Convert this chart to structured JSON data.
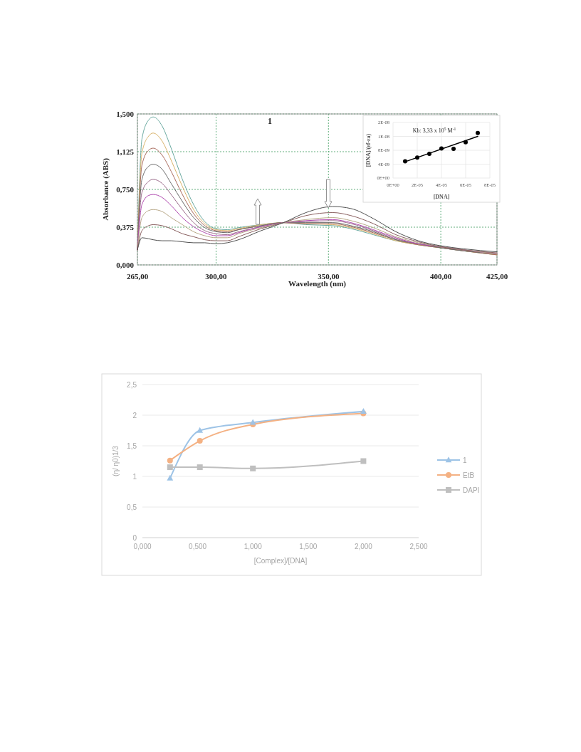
{
  "chart_data": [
    {
      "type": "line",
      "title": "1",
      "xlabel": "Wavelength (nm)",
      "ylabel": "Absorbance (ABS)",
      "legend": false,
      "grid": true,
      "line_style": "solid",
      "marker": "none",
      "x": [
        265,
        267,
        270,
        272,
        276,
        280,
        285,
        290,
        295,
        300,
        305,
        310,
        320,
        330,
        340,
        352,
        360,
        370,
        380,
        390,
        400,
        410,
        425
      ],
      "xlim": [
        265,
        425
      ],
      "xticks": [
        {
          "value": 265,
          "label": "265,00"
        },
        {
          "value": 300,
          "label": "300,00"
        },
        {
          "value": 350,
          "label": "350,00"
        },
        {
          "value": 400,
          "label": "400,00"
        },
        {
          "value": 425,
          "label": "425,00"
        }
      ],
      "ylim": [
        0,
        1.5
      ],
      "yticks": [
        {
          "value": 0,
          "label": "0,000"
        },
        {
          "value": 0.375,
          "label": "0,375"
        },
        {
          "value": 0.75,
          "label": "0,750"
        },
        {
          "value": 1.125,
          "label": "1,125"
        },
        {
          "value": 1.5,
          "label": "1,500"
        }
      ],
      "series": [
        {
          "color": "#6aa9a0",
          "values": [
            0.15,
            1.25,
            1.44,
            1.47,
            1.38,
            1.16,
            0.85,
            0.6,
            0.43,
            0.36,
            0.35,
            0.37,
            0.4,
            0.42,
            0.4,
            0.39,
            0.36,
            0.3,
            0.24,
            0.2,
            0.17,
            0.14,
            0.1
          ]
        },
        {
          "color": "#d9b36a",
          "values": [
            0.15,
            1.11,
            1.28,
            1.31,
            1.23,
            1.04,
            0.78,
            0.55,
            0.41,
            0.35,
            0.34,
            0.36,
            0.4,
            0.42,
            0.41,
            0.4,
            0.37,
            0.31,
            0.24,
            0.2,
            0.17,
            0.14,
            0.1
          ]
        },
        {
          "color": "#a86a5c",
          "values": [
            0.15,
            0.99,
            1.14,
            1.16,
            1.09,
            0.93,
            0.7,
            0.51,
            0.39,
            0.34,
            0.33,
            0.35,
            0.39,
            0.42,
            0.41,
            0.41,
            0.38,
            0.32,
            0.25,
            0.2,
            0.17,
            0.14,
            0.1
          ]
        },
        {
          "color": "#6a6a6a",
          "values": [
            0.15,
            0.85,
            0.98,
            1.0,
            0.95,
            0.81,
            0.63,
            0.47,
            0.37,
            0.33,
            0.32,
            0.35,
            0.39,
            0.42,
            0.42,
            0.42,
            0.39,
            0.33,
            0.25,
            0.21,
            0.17,
            0.14,
            0.11
          ]
        },
        {
          "color": "#9a6a8a",
          "values": [
            0.15,
            0.72,
            0.83,
            0.85,
            0.81,
            0.7,
            0.55,
            0.42,
            0.34,
            0.31,
            0.3,
            0.33,
            0.38,
            0.42,
            0.43,
            0.44,
            0.41,
            0.34,
            0.26,
            0.21,
            0.18,
            0.15,
            0.11
          ]
        },
        {
          "color": "#b04ab0",
          "values": [
            0.15,
            0.6,
            0.69,
            0.7,
            0.67,
            0.59,
            0.47,
            0.38,
            0.32,
            0.29,
            0.29,
            0.32,
            0.38,
            0.42,
            0.44,
            0.45,
            0.42,
            0.35,
            0.27,
            0.21,
            0.18,
            0.15,
            0.11
          ]
        },
        {
          "color": "#b8a888",
          "values": [
            0.15,
            0.47,
            0.54,
            0.55,
            0.53,
            0.47,
            0.4,
            0.33,
            0.29,
            0.27,
            0.27,
            0.31,
            0.37,
            0.42,
            0.45,
            0.47,
            0.44,
            0.37,
            0.28,
            0.22,
            0.18,
            0.15,
            0.11
          ]
        },
        {
          "color": "#8a6060",
          "values": [
            0.15,
            0.34,
            0.39,
            0.4,
            0.39,
            0.36,
            0.31,
            0.28,
            0.25,
            0.24,
            0.24,
            0.28,
            0.36,
            0.42,
            0.49,
            0.52,
            0.49,
            0.41,
            0.3,
            0.23,
            0.18,
            0.15,
            0.12
          ]
        },
        {
          "color": "#505050",
          "values": [
            0.15,
            0.27,
            0.26,
            0.25,
            0.24,
            0.24,
            0.23,
            0.22,
            0.22,
            0.21,
            0.22,
            0.25,
            0.34,
            0.42,
            0.52,
            0.58,
            0.56,
            0.46,
            0.33,
            0.24,
            0.19,
            0.16,
            0.13
          ]
        }
      ]
    },
    {
      "type": "scatter",
      "xlabel": "[DNA]",
      "ylabel": "[DNA]/(εf-εa)",
      "grid": true,
      "legend": false,
      "annotations": [
        "Kb: 3,33 x 10$^{5}$ M$^{-1}$"
      ],
      "xlim": [
        0,
        8e-05
      ],
      "xticks": [
        {
          "value": 0,
          "label": "0E+00"
        },
        {
          "value": 2e-05,
          "label": "2E-05"
        },
        {
          "value": 4e-05,
          "label": "4E-05"
        },
        {
          "value": 6e-05,
          "label": "6E-05"
        },
        {
          "value": 8e-05,
          "label": "8E-05"
        }
      ],
      "ylim": [
        0,
        1.6e-08
      ],
      "yticks": [
        {
          "value": 0,
          "label": "0E+00"
        },
        {
          "value": 4e-09,
          "label": "4E-09"
        },
        {
          "value": 8e-09,
          "label": "8E-09"
        },
        {
          "value": 1.2e-08,
          "label": "1E-08"
        },
        {
          "value": 1.6e-08,
          "label": "2E-08"
        }
      ],
      "series": [
        {
          "marker": "circle",
          "color": "#000000",
          "x": [
            1e-05,
            2e-05,
            3e-05,
            4e-05,
            5e-05,
            6e-05,
            7e-05
          ],
          "values": [
            4.8e-09,
            5.9e-09,
            7e-09,
            8.5e-09,
            8.4e-09,
            1.03e-08,
            1.3e-08
          ]
        },
        {
          "type": "line",
          "marker": "none",
          "color": "#000000",
          "x": [
            1e-05,
            7e-05
          ],
          "values": [
            4.7e-09,
            1.2e-08
          ]
        }
      ]
    },
    {
      "type": "line",
      "xlabel": "[Complex]/[DNA]",
      "ylabel": "(η/ η0)1/3",
      "grid": "y",
      "legend": "right",
      "line_style": "solid",
      "x": [
        0.25,
        0.52,
        1.0,
        2.0
      ],
      "xlim": [
        0,
        2.5
      ],
      "xticks": [
        {
          "value": 0,
          "label": "0,000"
        },
        {
          "value": 0.5,
          "label": "0,500"
        },
        {
          "value": 1,
          "label": "1,000"
        },
        {
          "value": 1.5,
          "label": "1,500"
        },
        {
          "value": 2,
          "label": "2,000"
        },
        {
          "value": 2.5,
          "label": "2,500"
        }
      ],
      "ylim": [
        0,
        2.5
      ],
      "yticks": [
        0,
        {
          "value": 0.5,
          "label": "0,5"
        },
        1,
        {
          "value": 1.5,
          "label": "1,5"
        },
        2,
        {
          "value": 2.5,
          "label": "2,5"
        }
      ],
      "series": [
        {
          "name": "1",
          "marker": "triangle",
          "color": "#9dc3e6",
          "values": [
            0.97,
            1.75,
            1.88,
            2.06
          ]
        },
        {
          "name": "EtB",
          "marker": "circle",
          "color": "#f4b183",
          "values": [
            1.26,
            1.58,
            1.85,
            2.03
          ]
        },
        {
          "name": "DAPI",
          "marker": "square",
          "color": "#bfbfbf",
          "values": [
            1.15,
            1.15,
            1.13,
            1.25
          ]
        }
      ]
    }
  ]
}
